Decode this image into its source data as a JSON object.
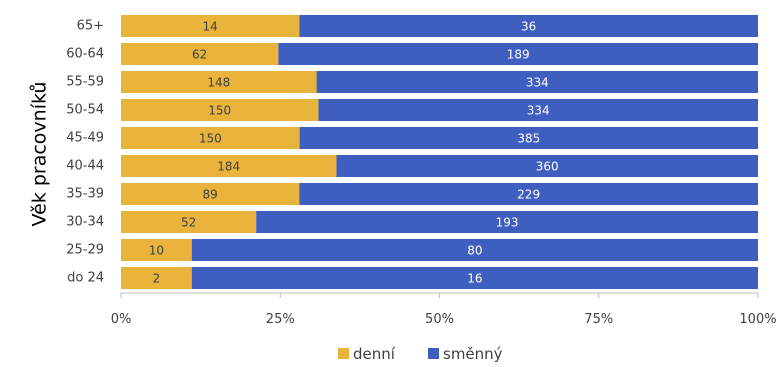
{
  "chart_data": {
    "type": "bar",
    "orientation": "horizontal",
    "stacking": "percent",
    "ylabel": "Věk pracovníků",
    "xlabel": "",
    "categories": [
      "65+",
      "60-64",
      "55-59",
      "50-54",
      "45-49",
      "40-44",
      "35-39",
      "30-34",
      "25-29",
      "do 24"
    ],
    "series": [
      {
        "name": "denní",
        "color": "#E9B33C",
        "values": [
          14,
          62,
          148,
          150,
          150,
          184,
          89,
          52,
          10,
          2
        ]
      },
      {
        "name": "směnný",
        "color": "#3F5FC0",
        "values": [
          36,
          189,
          334,
          334,
          385,
          360,
          229,
          193,
          80,
          16
        ]
      }
    ],
    "x_ticks": [
      "0%",
      "25%",
      "50%",
      "75%",
      "100%"
    ],
    "xlim": [
      0,
      100
    ],
    "legend_position": "bottom",
    "grid": false
  }
}
